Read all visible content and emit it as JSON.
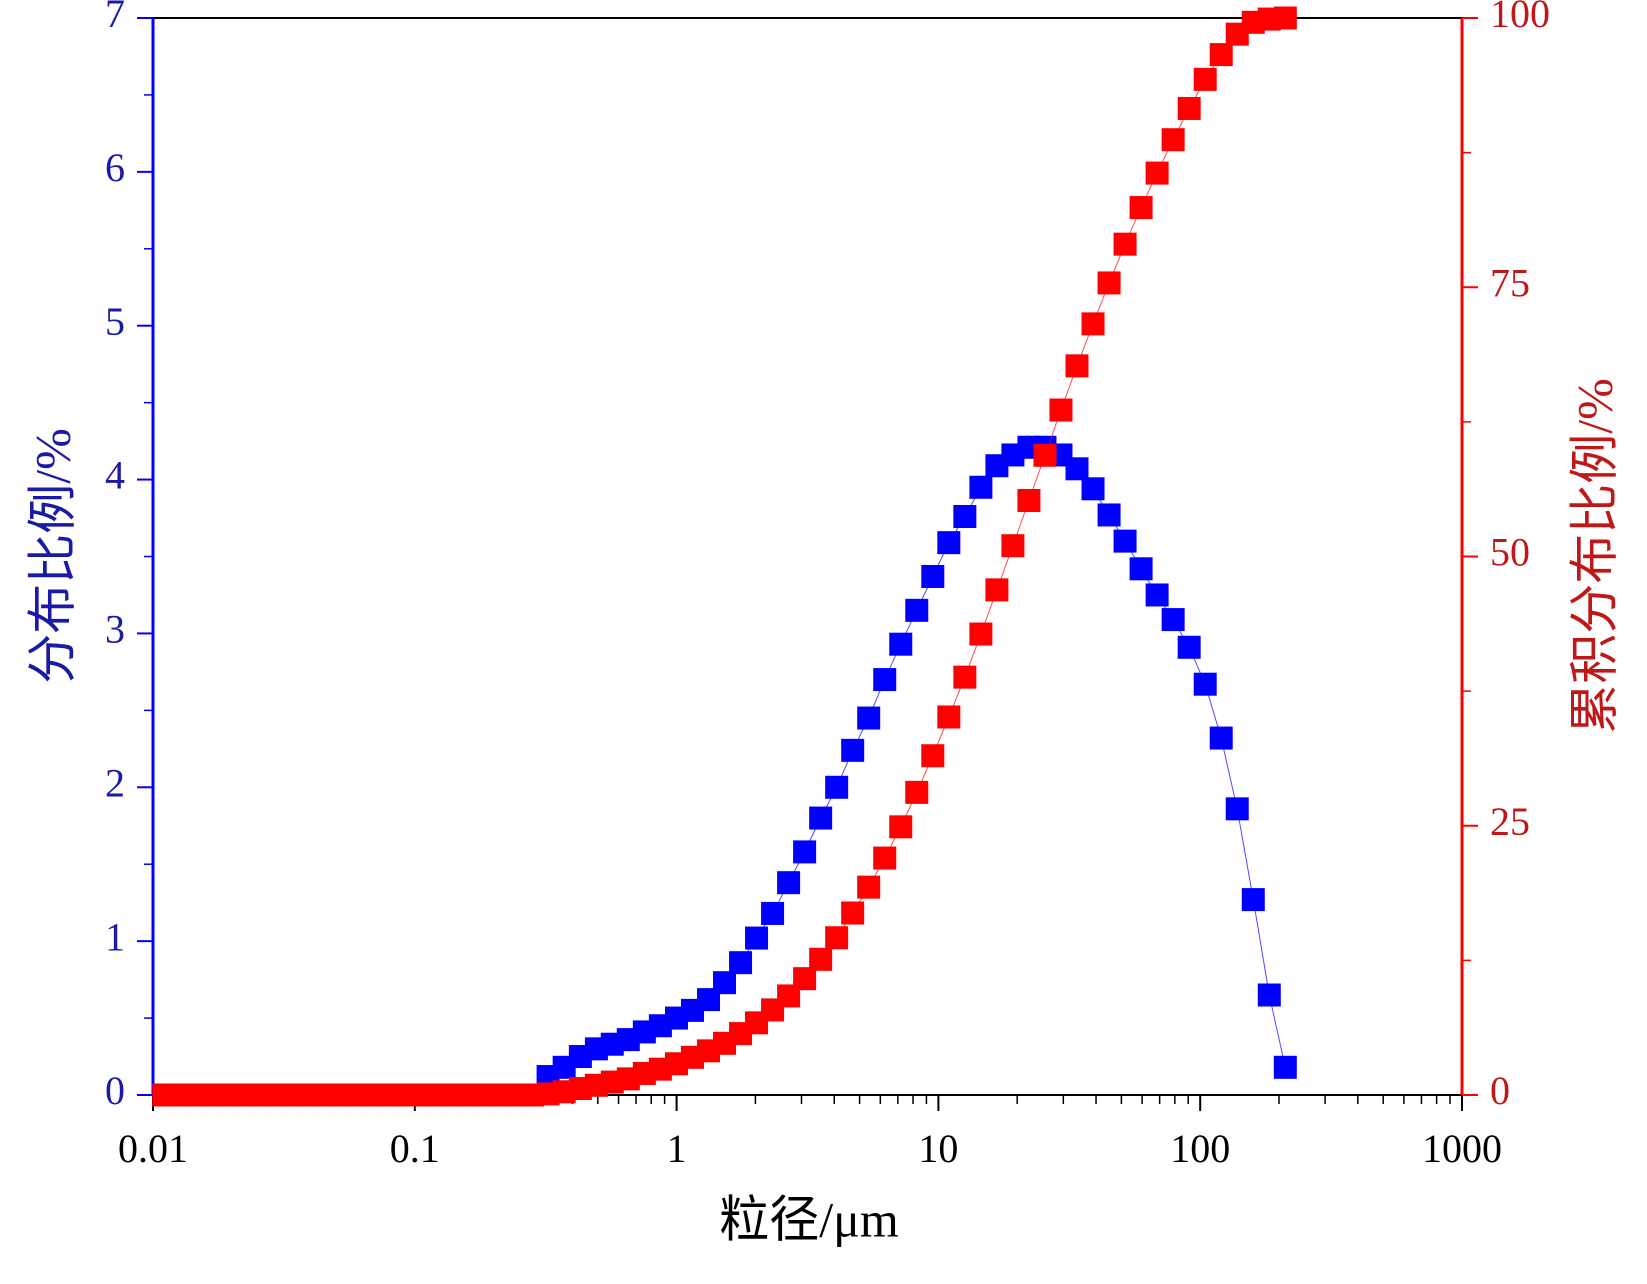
{
  "chart_data": {
    "type": "scatter",
    "xlabel": "粒径/μm",
    "ylabel": "分布比例/%",
    "y2label": "累积分布比例/%",
    "xscale": "log",
    "xlim": [
      0.01,
      1000
    ],
    "xticks": [
      0.01,
      0.1,
      1,
      10,
      100,
      1000
    ],
    "ylim": [
      0,
      7
    ],
    "yticks": [
      0,
      1,
      2,
      3,
      4,
      5,
      6,
      7
    ],
    "y2lim": [
      0,
      100
    ],
    "y2ticks": [
      0,
      25,
      50,
      75,
      100
    ],
    "x": [
      0.011,
      0.01266,
      0.01457,
      0.01677,
      0.0193,
      0.0222,
      0.0256,
      0.0295,
      0.0339,
      0.0391,
      0.045,
      0.0518,
      0.0596,
      0.0686,
      0.079,
      0.091,
      0.1047,
      0.1206,
      0.1388,
      0.16,
      0.184,
      0.212,
      0.244,
      0.281,
      0.323,
      0.372,
      0.429,
      0.494,
      0.568,
      0.654,
      0.753,
      0.867,
      0.999,
      1.15,
      1.324,
      1.524,
      1.755,
      2.02,
      2.326,
      2.678,
      3.083,
      3.55,
      4.087,
      4.705,
      5.417,
      6.237,
      7.181,
      8.268,
      9.519,
      10.96,
      12.62,
      14.53,
      16.73,
      19.26,
      22.17,
      25.53,
      29.39,
      33.84,
      38.96,
      44.86,
      51.64,
      59.46,
      68.46,
      78.82,
      90.75,
      104.5,
      120.3,
      138.5,
      159.5,
      183.6,
      211.4
    ],
    "series": [
      {
        "color": "#0000ff",
        "axis": "y",
        "values": [
          0,
          0,
          0,
          0,
          0,
          0,
          0,
          0,
          0,
          0,
          0,
          0,
          0,
          0,
          0,
          0,
          0,
          0,
          0,
          0,
          0,
          0,
          0,
          0,
          0.12,
          0.18,
          0.25,
          0.3,
          0.33,
          0.36,
          0.41,
          0.45,
          0.5,
          0.55,
          0.62,
          0.73,
          0.86,
          1.02,
          1.18,
          1.38,
          1.58,
          1.8,
          2.0,
          2.24,
          2.45,
          2.7,
          2.93,
          3.15,
          3.37,
          3.59,
          3.76,
          3.95,
          4.09,
          4.16,
          4.21,
          4.21,
          4.16,
          4.07,
          3.94,
          3.77,
          3.6,
          3.42,
          3.25,
          3.09,
          2.91,
          2.67,
          2.32,
          1.86,
          1.27,
          0.65,
          0.18
        ]
      },
      {
        "color": "#ff0000",
        "axis": "y2",
        "values": [
          0,
          0,
          0,
          0,
          0,
          0,
          0,
          0,
          0,
          0,
          0,
          0,
          0,
          0,
          0,
          0,
          0,
          0,
          0,
          0,
          0,
          0,
          0,
          0,
          0.1,
          0.3,
          0.6,
          0.9,
          1.2,
          1.5,
          2.0,
          2.4,
          2.9,
          3.5,
          4.1,
          4.8,
          5.7,
          6.7,
          7.9,
          9.2,
          10.8,
          12.6,
          14.6,
          16.9,
          19.3,
          22.0,
          24.9,
          28.1,
          31.5,
          35.1,
          38.8,
          42.8,
          46.9,
          51.0,
          55.2,
          59.4,
          63.6,
          67.7,
          71.6,
          75.4,
          79.0,
          82.4,
          85.6,
          88.7,
          91.6,
          94.3,
          96.6,
          98.5,
          99.6,
          99.9,
          100
        ]
      }
    ]
  }
}
